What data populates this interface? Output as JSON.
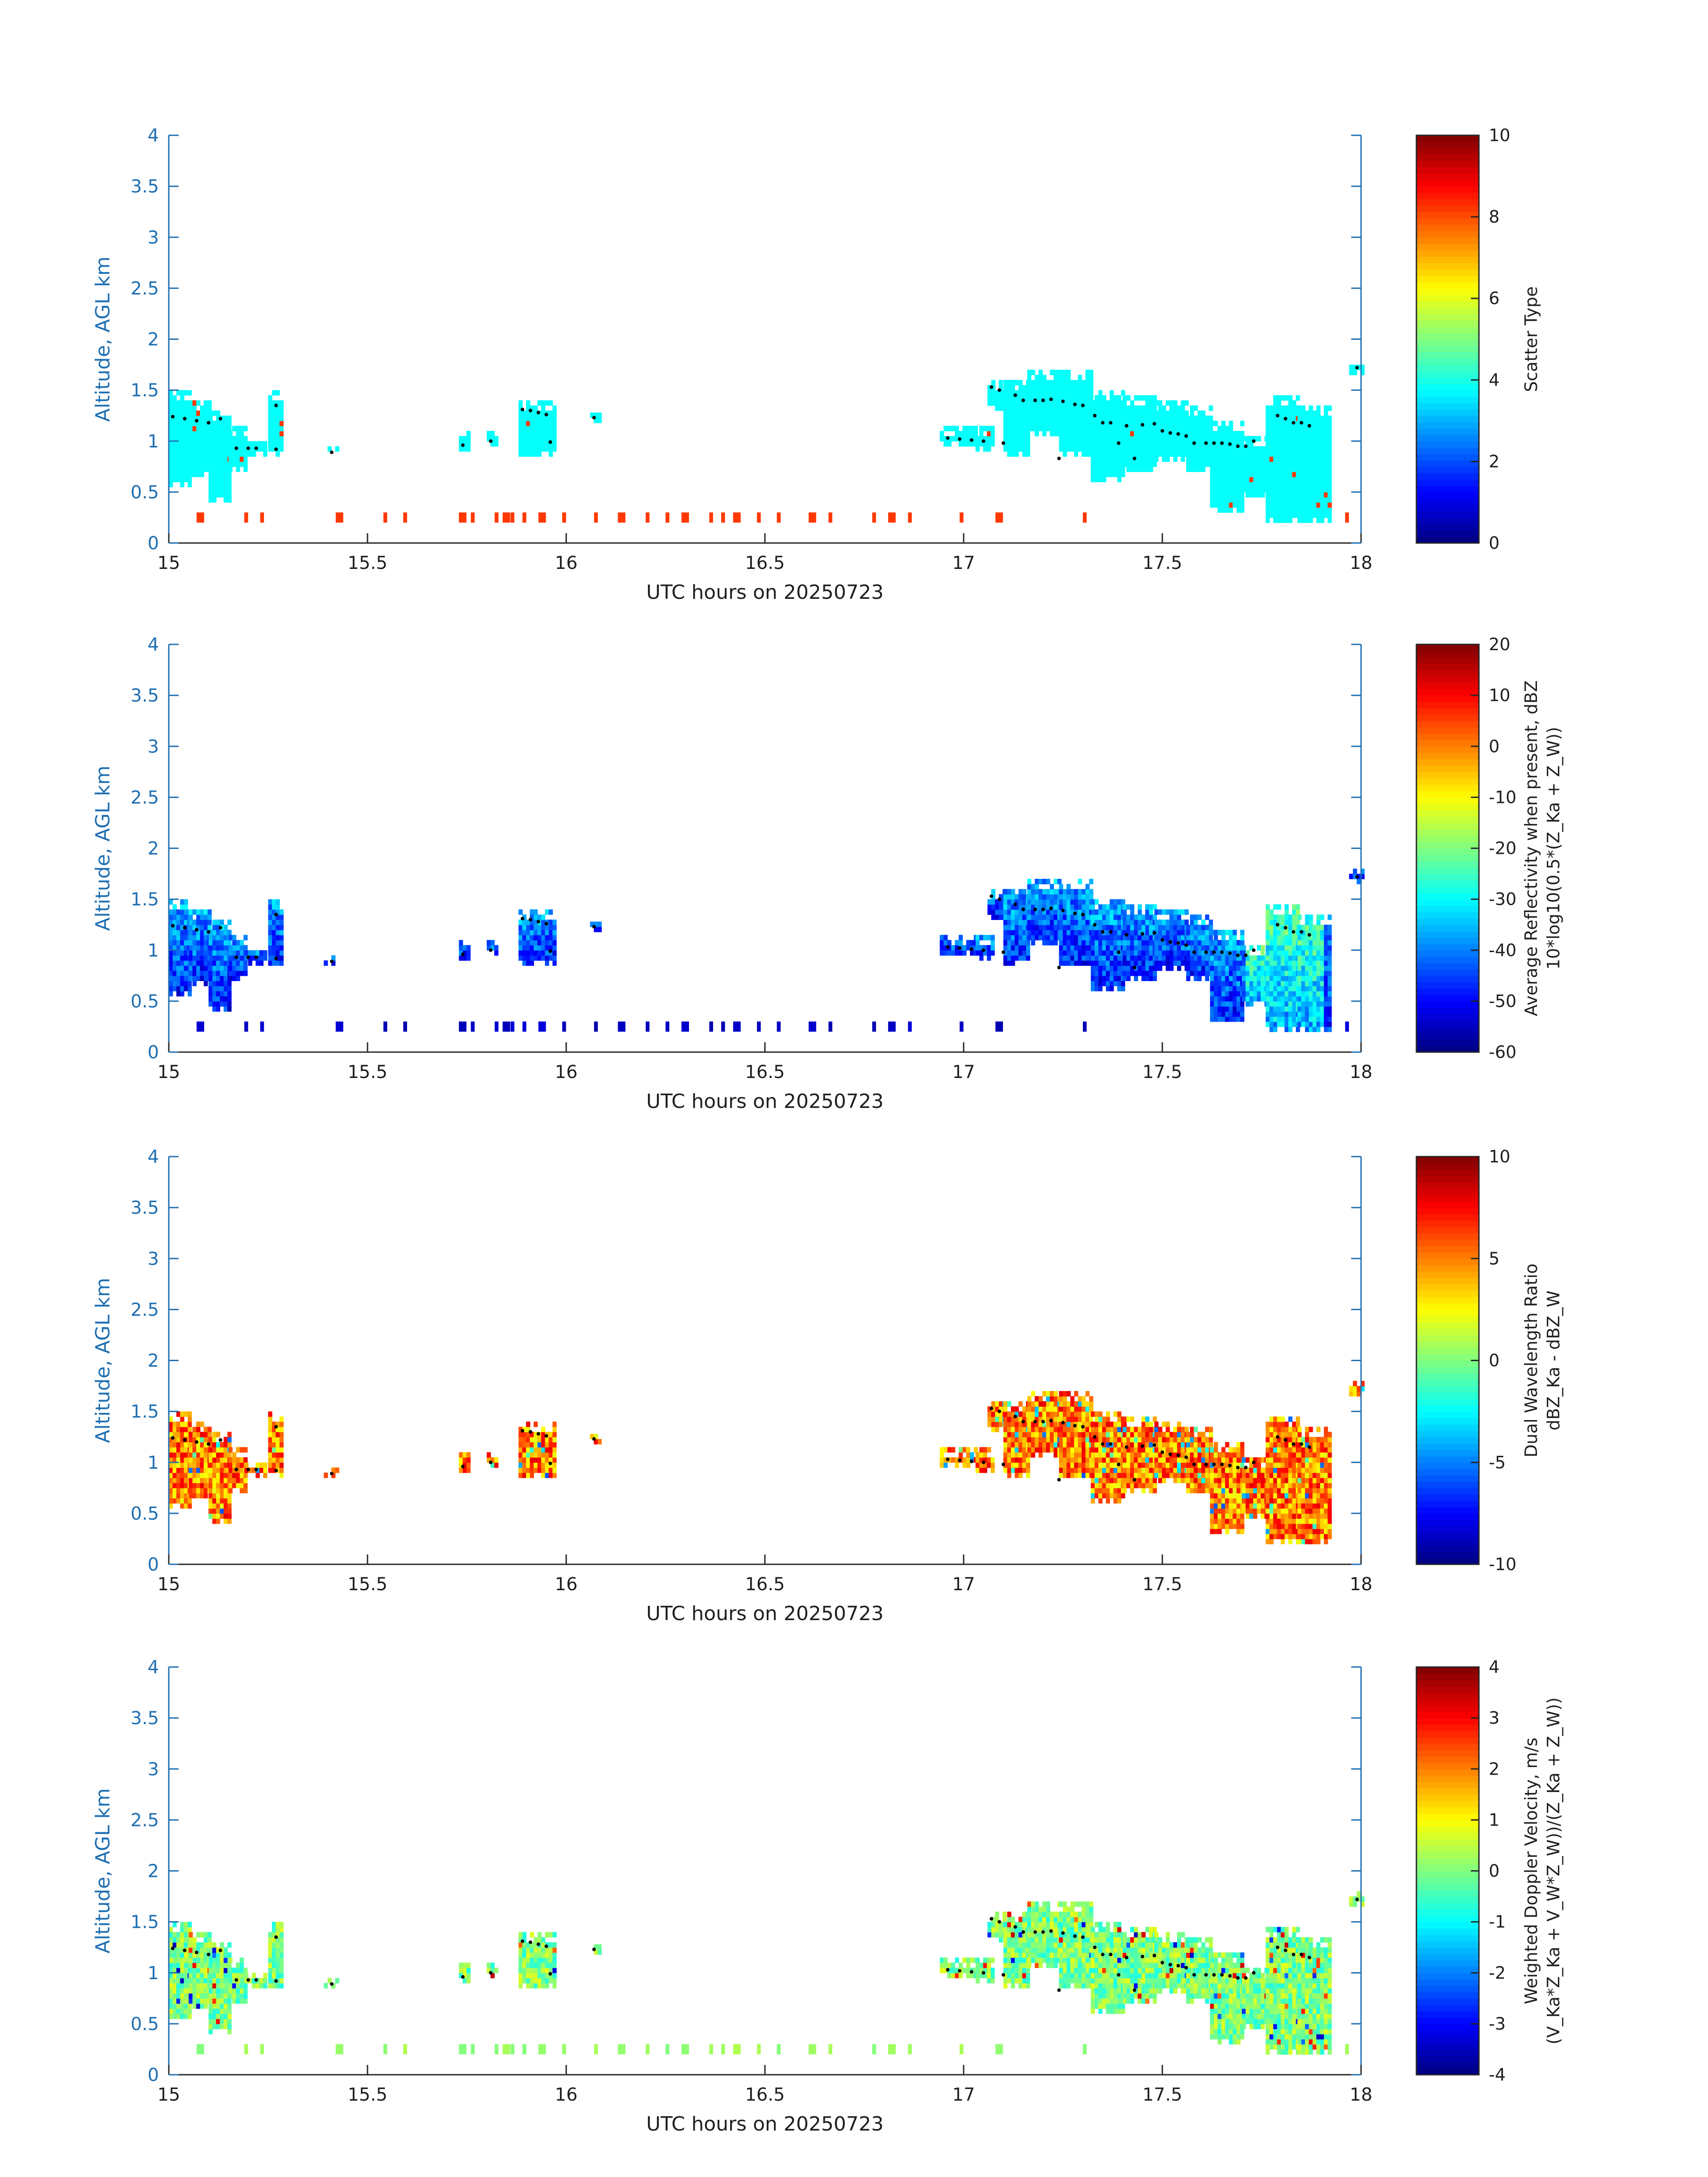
{
  "figure": {
    "date": "20250723"
  },
  "chart_data": [
    {
      "type": "heatmap",
      "xlabel": "UTC hours on 20250723",
      "ylabel": "Altitude, AGL km",
      "xlim": [
        15,
        18
      ],
      "ylim": [
        0,
        4
      ],
      "xticks": [
        "15",
        "15.5",
        "16",
        "16.5",
        "17",
        "17.5",
        "18"
      ],
      "yticks": [
        "0",
        "0.5",
        "1",
        "1.5",
        "2",
        "2.5",
        "3",
        "3.5",
        "4"
      ],
      "colorbar": {
        "title_lines": [
          "Scatter Type"
        ],
        "ticks": [
          "0",
          "2",
          "4",
          "6",
          "8",
          "10"
        ],
        "range": [
          0,
          10
        ],
        "colormap": "jet"
      },
      "field": "scatter_type",
      "dominant_values": {
        "cloud": 3.8,
        "near_surface": 8.2
      }
    },
    {
      "type": "heatmap",
      "xlabel": "UTC hours on 20250723",
      "ylabel": "Altitude, AGL km",
      "xlim": [
        15,
        18
      ],
      "ylim": [
        0,
        4
      ],
      "xticks": [
        "15",
        "15.5",
        "16",
        "16.5",
        "17",
        "17.5",
        "18"
      ],
      "yticks": [
        "0",
        "0.5",
        "1",
        "1.5",
        "2",
        "2.5",
        "3",
        "3.5",
        "4"
      ],
      "colorbar": {
        "title_lines": [
          "Average Reflectivity when present, dBZ",
          "10*log10(0.5*(Z_Ka + Z_W))"
        ],
        "ticks": [
          "-60",
          "-50",
          "-40",
          "-30",
          "-20",
          "-10",
          "0",
          "10",
          "20"
        ],
        "range": [
          -60,
          20
        ],
        "colormap": "jet"
      },
      "field": "reflectivity",
      "dominant_values": {
        "cloud_range": [
          -58,
          -25
        ],
        "near_surface": -58
      }
    },
    {
      "type": "heatmap",
      "xlabel": "UTC hours on 20250723",
      "ylabel": "Altitude, AGL km",
      "xlim": [
        15,
        18
      ],
      "ylim": [
        0,
        4
      ],
      "xticks": [
        "15",
        "15.5",
        "16",
        "16.5",
        "17",
        "17.5",
        "18"
      ],
      "yticks": [
        "0",
        "0.5",
        "1",
        "1.5",
        "2",
        "2.5",
        "3",
        "3.5",
        "4"
      ],
      "colorbar": {
        "title_lines": [
          "Dual Wavelength Ratio",
          "dBZ_Ka - dBZ_W"
        ],
        "ticks": [
          "-10",
          "-5",
          "0",
          "5",
          "10"
        ],
        "range": [
          -10,
          10
        ],
        "colormap": "jet"
      },
      "field": "dual_wavelength_ratio",
      "dominant_values": {
        "cloud_range": [
          1,
          8
        ]
      }
    },
    {
      "type": "heatmap",
      "xlabel": "UTC hours on 20250723",
      "ylabel": "Altitude, AGL km",
      "xlim": [
        15,
        18
      ],
      "ylim": [
        0,
        4
      ],
      "xticks": [
        "15",
        "15.5",
        "16",
        "16.5",
        "17",
        "17.5",
        "18"
      ],
      "yticks": [
        "0",
        "0.5",
        "1",
        "1.5",
        "2",
        "2.5",
        "3",
        "3.5",
        "4"
      ],
      "colorbar": {
        "title_lines": [
          "Weighted Doppler Velocity, m/s",
          "(V_Ka*Z_Ka + V_W*Z_W))/(Z_Ka + Z_W))"
        ],
        "ticks": [
          "-4",
          "-3",
          "-2",
          "-1",
          "0",
          "1",
          "2",
          "3",
          "4"
        ],
        "range": [
          -4,
          4
        ],
        "colormap": "jet"
      },
      "field": "doppler_velocity",
      "dominant_values": {
        "cloud_range": [
          -1.2,
          0.8
        ],
        "near_surface": 0.1
      }
    }
  ],
  "cloud_base_dots": {
    "label": "cloud base",
    "points": [
      [
        15.01,
        1.24
      ],
      [
        15.04,
        1.22
      ],
      [
        15.07,
        1.2
      ],
      [
        15.1,
        1.18
      ],
      [
        15.13,
        1.22
      ],
      [
        15.17,
        0.93
      ],
      [
        15.2,
        0.93
      ],
      [
        15.22,
        0.93
      ],
      [
        15.27,
        1.35
      ],
      [
        15.27,
        0.92
      ],
      [
        15.41,
        0.89
      ],
      [
        15.74,
        0.96
      ],
      [
        15.81,
        1.0
      ],
      [
        15.89,
        1.31
      ],
      [
        15.91,
        1.3
      ],
      [
        15.93,
        1.28
      ],
      [
        15.95,
        1.26
      ],
      [
        15.96,
        0.99
      ],
      [
        16.07,
        1.23
      ],
      [
        16.96,
        1.03
      ],
      [
        16.99,
        1.02
      ],
      [
        17.02,
        1.01
      ],
      [
        17.05,
        1.0
      ],
      [
        17.07,
        1.53
      ],
      [
        17.09,
        1.5
      ],
      [
        17.1,
        0.98
      ],
      [
        17.13,
        1.45
      ],
      [
        17.15,
        1.4
      ],
      [
        17.18,
        1.4
      ],
      [
        17.2,
        1.4
      ],
      [
        17.22,
        1.41
      ],
      [
        17.24,
        0.83
      ],
      [
        17.25,
        1.39
      ],
      [
        17.28,
        1.36
      ],
      [
        17.3,
        1.35
      ],
      [
        17.33,
        1.25
      ],
      [
        17.35,
        1.18
      ],
      [
        17.37,
        1.18
      ],
      [
        17.39,
        0.98
      ],
      [
        17.41,
        1.15
      ],
      [
        17.43,
        0.83
      ],
      [
        17.45,
        1.16
      ],
      [
        17.48,
        1.17
      ],
      [
        17.5,
        1.1
      ],
      [
        17.52,
        1.08
      ],
      [
        17.54,
        1.07
      ],
      [
        17.56,
        1.05
      ],
      [
        17.58,
        0.98
      ],
      [
        17.61,
        0.98
      ],
      [
        17.63,
        0.98
      ],
      [
        17.65,
        0.98
      ],
      [
        17.67,
        0.97
      ],
      [
        17.69,
        0.95
      ],
      [
        17.71,
        0.95
      ],
      [
        17.73,
        1.0
      ],
      [
        17.79,
        1.25
      ],
      [
        17.81,
        1.22
      ],
      [
        17.83,
        1.18
      ],
      [
        17.85,
        1.18
      ],
      [
        17.87,
        1.15
      ],
      [
        17.99,
        1.72
      ]
    ]
  }
}
